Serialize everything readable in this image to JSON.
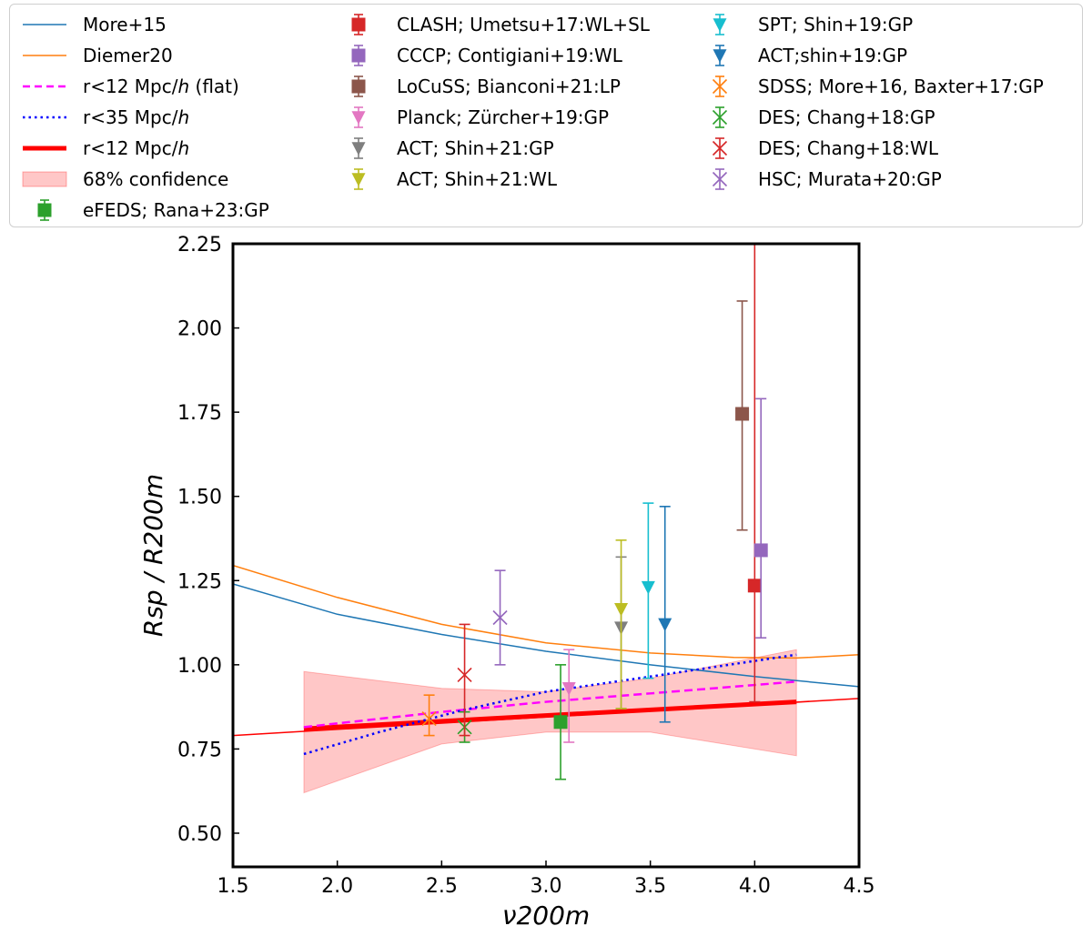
{
  "chart_data": {
    "type": "line",
    "title": "",
    "xlabel": "ν200m",
    "ylabel": "Rsp / R200m",
    "xlim": [
      1.5,
      4.5
    ],
    "ylim": [
      0.4,
      2.25
    ],
    "xticks": [
      1.5,
      2.0,
      2.5,
      3.0,
      3.5,
      4.0,
      4.5
    ],
    "yticks": [
      0.5,
      0.75,
      1.0,
      1.25,
      1.5,
      1.75,
      2.0,
      2.25
    ],
    "xtick_labels": [
      "1.5",
      "2.0",
      "2.5",
      "3.0",
      "3.5",
      "4.0",
      "4.5"
    ],
    "ytick_labels": [
      "0.50",
      "0.75",
      "1.00",
      "1.25",
      "1.50",
      "1.75",
      "2.00",
      "2.25"
    ],
    "grid": false,
    "legend_position": "top, outside plot, three columns",
    "lines": [
      {
        "name": "More+15",
        "color": "#1f77b4",
        "style": "solid",
        "width": 1.5,
        "x": [
          1.5,
          2.0,
          2.5,
          3.0,
          3.5,
          4.0,
          4.5
        ],
        "y": [
          1.24,
          1.15,
          1.09,
          1.04,
          1.0,
          0.965,
          0.935
        ]
      },
      {
        "name": "Diemer20",
        "color": "#ff7f0e",
        "style": "solid",
        "width": 1.5,
        "x": [
          1.5,
          2.0,
          2.5,
          3.0,
          3.5,
          3.9,
          4.2,
          4.5
        ],
        "y": [
          1.295,
          1.2,
          1.12,
          1.065,
          1.035,
          1.022,
          1.02,
          1.03
        ]
      },
      {
        "name": "r<12 Mpc/h (flat)",
        "color": "#ff00ff",
        "style": "dashed",
        "width": 2.5,
        "x": [
          1.84,
          2.5,
          3.0,
          3.5,
          4.2
        ],
        "y": [
          0.815,
          0.86,
          0.89,
          0.915,
          0.95
        ]
      },
      {
        "name": "r<35 Mpc/h",
        "color": "#0000ff",
        "style": "dotted",
        "width": 2.5,
        "x": [
          1.84,
          2.2,
          2.6,
          3.0,
          3.5,
          4.2
        ],
        "y": [
          0.735,
          0.8,
          0.865,
          0.92,
          0.965,
          1.03
        ]
      },
      {
        "name": "r<12 Mpc/h",
        "color": "#ff0000",
        "style": "solid",
        "width": 5,
        "x": [
          1.84,
          4.2
        ],
        "y": [
          0.81,
          0.89
        ]
      },
      {
        "name": "r<12 Mpc/h extrapolation",
        "color": "#ff0000",
        "style": "solid",
        "width": 1.5,
        "x": [
          1.5,
          4.5
        ],
        "y": [
          0.79,
          0.9
        ]
      }
    ],
    "band": {
      "name": "68% confidence",
      "color": "#ff0000",
      "opacity": 0.22,
      "x": [
        1.84,
        2.5,
        3.0,
        3.5,
        4.2
      ],
      "upper": [
        0.98,
        0.93,
        0.92,
        0.96,
        1.045
      ],
      "lower": [
        0.62,
        0.765,
        0.8,
        0.8,
        0.73
      ]
    },
    "points": [
      {
        "name": "eFEDS; Rana+23:GP",
        "marker": "square",
        "color": "#2ca02c",
        "x": 3.07,
        "y": 0.83,
        "yerr_low": 0.66,
        "yerr_high": 1.0,
        "cap": true
      },
      {
        "name": "CLASH; Umetsu+17:WL+SL",
        "marker": "square",
        "color": "#d62728",
        "x": 4.0,
        "y": 1.235,
        "yerr_low": 0.89,
        "yerr_high": 2.25,
        "cap": true
      },
      {
        "name": "CCCP; Contigiani+19:WL",
        "marker": "square",
        "color": "#9467bd",
        "x": 4.03,
        "y": 1.34,
        "yerr_low": 1.08,
        "yerr_high": 1.79,
        "cap": true
      },
      {
        "name": "LoCuSS; Bianconi+21:LP",
        "marker": "square",
        "color": "#8c564b",
        "x": 3.94,
        "y": 1.745,
        "yerr_low": 1.4,
        "yerr_high": 2.08,
        "cap": true
      },
      {
        "name": "Planck; Zürcher+19:GP",
        "marker": "triangle_down",
        "color": "#e377c2",
        "x": 3.11,
        "y": 0.93,
        "yerr_low": 0.77,
        "yerr_high": 1.045,
        "cap": true
      },
      {
        "name": "ACT; Shin+21:GP",
        "marker": "triangle_down",
        "color": "#7f7f7f",
        "x": 3.36,
        "y": 1.11,
        "yerr_low": 0.87,
        "yerr_high": 1.32,
        "cap": true
      },
      {
        "name": "ACT; Shin+21:WL",
        "marker": "triangle_down",
        "color": "#bcbd22",
        "x": 3.36,
        "y": 1.165,
        "yerr_low": 0.87,
        "yerr_high": 1.37,
        "cap": true
      },
      {
        "name": "SPT; Shin+19:GP",
        "marker": "triangle_down",
        "color": "#17becf",
        "x": 3.49,
        "y": 1.23,
        "yerr_low": 0.96,
        "yerr_high": 1.48,
        "cap": true
      },
      {
        "name": "ACT;shin+19:GP",
        "marker": "triangle_down",
        "color": "#1f77b4",
        "x": 3.57,
        "y": 1.12,
        "yerr_low": 0.83,
        "yerr_high": 1.47,
        "cap": true
      },
      {
        "name": "SDSS; More+16, Baxter+17:GP",
        "marker": "x",
        "color": "#ff7f0e",
        "x": 2.44,
        "y": 0.84,
        "yerr_low": 0.79,
        "yerr_high": 0.91,
        "cap": true
      },
      {
        "name": "DES; Chang+18:GP",
        "marker": "x",
        "color": "#2ca02c",
        "x": 2.61,
        "y": 0.815,
        "yerr_low": 0.77,
        "yerr_high": 0.86,
        "cap": true
      },
      {
        "name": "DES; Chang+18:WL",
        "marker": "x",
        "color": "#d62728",
        "x": 2.61,
        "y": 0.97,
        "yerr_low": 0.79,
        "yerr_high": 1.12,
        "cap": true
      },
      {
        "name": "HSC; Murata+20:GP",
        "marker": "x",
        "color": "#9467bd",
        "x": 2.78,
        "y": 1.14,
        "yerr_low": 1.0,
        "yerr_high": 1.28,
        "cap": true
      }
    ]
  },
  "legend": {
    "col1": [
      {
        "id": "more15",
        "label": "More+15",
        "kind": "line",
        "color": "#1f77b4"
      },
      {
        "id": "diemer20",
        "label": "Diemer20",
        "kind": "line",
        "color": "#ff7f0e"
      },
      {
        "id": "flat",
        "label_pre": "r<12 Mpc/",
        "label_it": "h",
        "label_post": " (flat)",
        "kind": "dashed",
        "color": "#ff00ff"
      },
      {
        "id": "r35",
        "label_pre": "r<35 Mpc/",
        "label_it": "h",
        "label_post": "",
        "kind": "dotted",
        "color": "#0000ff"
      },
      {
        "id": "r12",
        "label_pre": "r<12 Mpc/",
        "label_it": "h",
        "label_post": "",
        "kind": "thick",
        "color": "#ff0000"
      },
      {
        "id": "conf",
        "label": "68% confidence",
        "kind": "band",
        "color": "#ff0000"
      },
      {
        "id": "efeds",
        "label": "eFEDS; Rana+23:GP",
        "kind": "square",
        "color": "#2ca02c"
      }
    ],
    "col2": [
      {
        "id": "clash",
        "label": "CLASH; Umetsu+17:WL+SL",
        "kind": "square",
        "color": "#d62728"
      },
      {
        "id": "cccp",
        "label": "CCCP; Contigiani+19:WL",
        "kind": "square",
        "color": "#9467bd"
      },
      {
        "id": "locuss",
        "label": "LoCuSS; Bianconi+21:LP",
        "kind": "square",
        "color": "#8c564b"
      },
      {
        "id": "planck",
        "label": "Planck; Zürcher+19:GP",
        "kind": "triangle_down",
        "color": "#e377c2"
      },
      {
        "id": "actgp",
        "label": "ACT; Shin+21:GP",
        "kind": "triangle_down",
        "color": "#7f7f7f"
      },
      {
        "id": "actwl",
        "label": "ACT; Shin+21:WL",
        "kind": "triangle_down",
        "color": "#bcbd22"
      }
    ],
    "col3": [
      {
        "id": "spt",
        "label": "SPT; Shin+19:GP",
        "kind": "triangle_down",
        "color": "#17becf"
      },
      {
        "id": "act19",
        "label": "ACT;shin+19:GP",
        "kind": "triangle_down",
        "color": "#1f77b4"
      },
      {
        "id": "sdss",
        "label": "SDSS; More+16, Baxter+17:GP",
        "kind": "x",
        "color": "#ff7f0e"
      },
      {
        "id": "desgp",
        "label": "DES; Chang+18:GP",
        "kind": "x",
        "color": "#2ca02c"
      },
      {
        "id": "deswl",
        "label": "DES; Chang+18:WL",
        "kind": "x",
        "color": "#d62728"
      },
      {
        "id": "hsc",
        "label": "HSC; Murata+20:GP",
        "kind": "x",
        "color": "#9467bd"
      }
    ]
  }
}
